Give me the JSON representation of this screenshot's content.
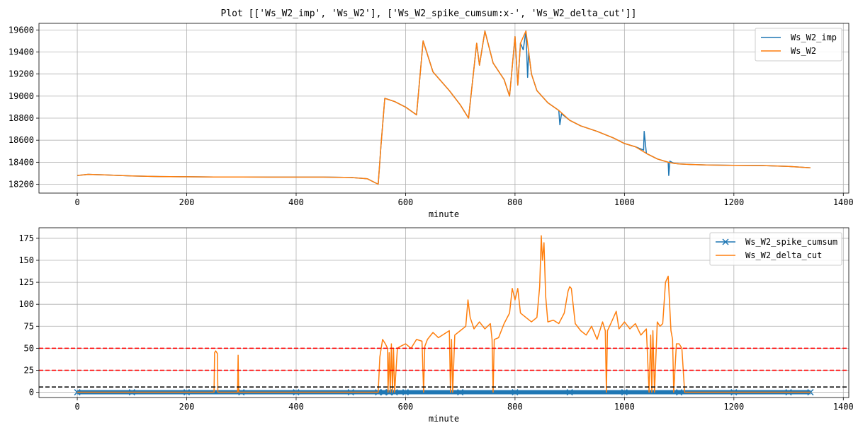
{
  "figure_title": "Plot [['Ws_W2_imp', 'Ws_W2'], ['Ws_W2_spike_cumsum:x-', 'Ws_W2_delta_cut']]",
  "colors": {
    "blue": "#1f77b4",
    "orange": "#ff7f0e",
    "red": "#ff0000",
    "black": "#000000",
    "grid": "#b0b0b0"
  },
  "chart_data": [
    {
      "type": "line",
      "title": "",
      "xlabel": "minute",
      "ylabel": "",
      "xlim": [
        -70,
        1410
      ],
      "ylim": [
        18120,
        19660
      ],
      "xticks": [
        0,
        200,
        400,
        600,
        800,
        1000,
        1200,
        1400
      ],
      "yticks": [
        18200,
        18400,
        18600,
        18800,
        19000,
        19200,
        19400,
        19600
      ],
      "grid": true,
      "legend_position": "top-right",
      "series": [
        {
          "name": "Ws_W2_imp",
          "color": "#1f77b4",
          "style": "line",
          "x": [
            0,
            20,
            50,
            100,
            150,
            200,
            250,
            300,
            350,
            400,
            450,
            500,
            530,
            550,
            555,
            562,
            580,
            600,
            620,
            632,
            650,
            680,
            700,
            715,
            730,
            735,
            745,
            760,
            780,
            790,
            800,
            805,
            810,
            815,
            820,
            823,
            825,
            830,
            840,
            860,
            880,
            882,
            885,
            900,
            920,
            950,
            980,
            1000,
            1020,
            1035,
            1036,
            1040,
            1060,
            1080,
            1081,
            1083,
            1090,
            1100,
            1120,
            1150,
            1200,
            1250,
            1300,
            1340
          ],
          "y": [
            18280,
            18290,
            18285,
            18275,
            18270,
            18268,
            18266,
            18266,
            18265,
            18265,
            18265,
            18262,
            18250,
            18200,
            18550,
            18980,
            18950,
            18900,
            18830,
            19500,
            19220,
            19050,
            18920,
            18800,
            19480,
            19280,
            19590,
            19300,
            19150,
            19000,
            19540,
            19100,
            19480,
            19420,
            19590,
            19170,
            19400,
            19200,
            19050,
            18940,
            18870,
            18740,
            18840,
            18780,
            18730,
            18680,
            18620,
            18570,
            18540,
            18510,
            18680,
            18480,
            18430,
            18400,
            18280,
            18410,
            18390,
            18385,
            18380,
            18375,
            18372,
            18370,
            18362,
            18350
          ]
        },
        {
          "name": "Ws_W2",
          "color": "#ff7f0e",
          "style": "line",
          "x": [
            0,
            20,
            50,
            100,
            150,
            200,
            250,
            300,
            350,
            400,
            450,
            500,
            530,
            550,
            555,
            562,
            580,
            600,
            620,
            632,
            650,
            680,
            700,
            715,
            730,
            735,
            745,
            760,
            780,
            790,
            800,
            805,
            810,
            820,
            825,
            830,
            840,
            860,
            880,
            900,
            920,
            950,
            980,
            1000,
            1020,
            1040,
            1060,
            1080,
            1090,
            1100,
            1120,
            1150,
            1200,
            1250,
            1300,
            1340
          ],
          "y": [
            18280,
            18290,
            18285,
            18275,
            18270,
            18268,
            18266,
            18266,
            18265,
            18265,
            18265,
            18262,
            18250,
            18200,
            18550,
            18980,
            18950,
            18900,
            18830,
            19500,
            19220,
            19050,
            18920,
            18800,
            19480,
            19280,
            19590,
            19300,
            19150,
            19000,
            19540,
            19100,
            19480,
            19590,
            19400,
            19200,
            19050,
            18940,
            18870,
            18780,
            18730,
            18680,
            18620,
            18570,
            18540,
            18480,
            18430,
            18400,
            18390,
            18385,
            18380,
            18375,
            18372,
            18370,
            18362,
            18350
          ]
        }
      ]
    },
    {
      "type": "line",
      "title": "",
      "xlabel": "minute",
      "ylabel": "",
      "xlim": [
        -70,
        1410
      ],
      "ylim": [
        -6,
        187
      ],
      "xticks": [
        0,
        200,
        400,
        600,
        800,
        1000,
        1200,
        1400
      ],
      "yticks": [
        0,
        25,
        50,
        75,
        100,
        125,
        150,
        175
      ],
      "grid": true,
      "legend_position": "top-right",
      "hlines": [
        {
          "y": 50,
          "color": "#ff0000",
          "style": "dashed"
        },
        {
          "y": 25,
          "color": "#ff0000",
          "style": "dashed"
        },
        {
          "y": 6,
          "color": "#000000",
          "style": "dashed"
        }
      ],
      "series": [
        {
          "name": "Ws_W2_spike_cumsum",
          "color": "#1f77b4",
          "style": "x-",
          "x": [
            0,
            100,
            200,
            300,
            400,
            500,
            550,
            560,
            570,
            580,
            600,
            700,
            800,
            900,
            1000,
            1100,
            1200,
            1300,
            1340
          ],
          "y": [
            0,
            0,
            0,
            0,
            0,
            0,
            0,
            0,
            0,
            0,
            0,
            0,
            0,
            0,
            0,
            0,
            0,
            0,
            0
          ]
        },
        {
          "name": "Ws_W2_delta_cut",
          "color": "#ff7f0e",
          "style": "line",
          "x": [
            0,
            250,
            251,
            253,
            256,
            257,
            293,
            294,
            295,
            550,
            553,
            558,
            563,
            567,
            568,
            570,
            572,
            574,
            576,
            578,
            580,
            585,
            590,
            600,
            610,
            620,
            630,
            633,
            635,
            640,
            650,
            660,
            680,
            682,
            684,
            686,
            690,
            700,
            710,
            714,
            718,
            725,
            735,
            745,
            755,
            758,
            760,
            762,
            770,
            780,
            790,
            795,
            800,
            805,
            810,
            820,
            830,
            840,
            845,
            848,
            850,
            853,
            856,
            860,
            870,
            880,
            890,
            897,
            900,
            903,
            910,
            920,
            930,
            940,
            950,
            960,
            965,
            967,
            969,
            975,
            985,
            990,
            1000,
            1010,
            1020,
            1030,
            1040,
            1045,
            1048,
            1050,
            1052,
            1055,
            1060,
            1065,
            1070,
            1075,
            1080,
            1085,
            1088,
            1090,
            1095,
            1100,
            1105,
            1110,
            1112,
            1120,
            1200,
            1300,
            1340
          ],
          "y": [
            0,
            0,
            45,
            47,
            44,
            0,
            0,
            42,
            0,
            0,
            40,
            60,
            55,
            50,
            0,
            45,
            0,
            55,
            0,
            50,
            0,
            50,
            52,
            55,
            50,
            60,
            58,
            0,
            52,
            60,
            68,
            62,
            70,
            0,
            60,
            0,
            65,
            70,
            75,
            105,
            85,
            72,
            80,
            72,
            78,
            60,
            0,
            60,
            62,
            78,
            90,
            118,
            105,
            118,
            90,
            85,
            80,
            85,
            120,
            178,
            150,
            170,
            110,
            80,
            82,
            78,
            90,
            115,
            120,
            118,
            78,
            70,
            65,
            75,
            60,
            80,
            70,
            0,
            70,
            78,
            92,
            72,
            80,
            72,
            78,
            65,
            72,
            0,
            65,
            0,
            70,
            0,
            80,
            75,
            78,
            125,
            132,
            70,
            60,
            0,
            55,
            55,
            50,
            0,
            0,
            0,
            0,
            0,
            0
          ]
        }
      ]
    }
  ]
}
